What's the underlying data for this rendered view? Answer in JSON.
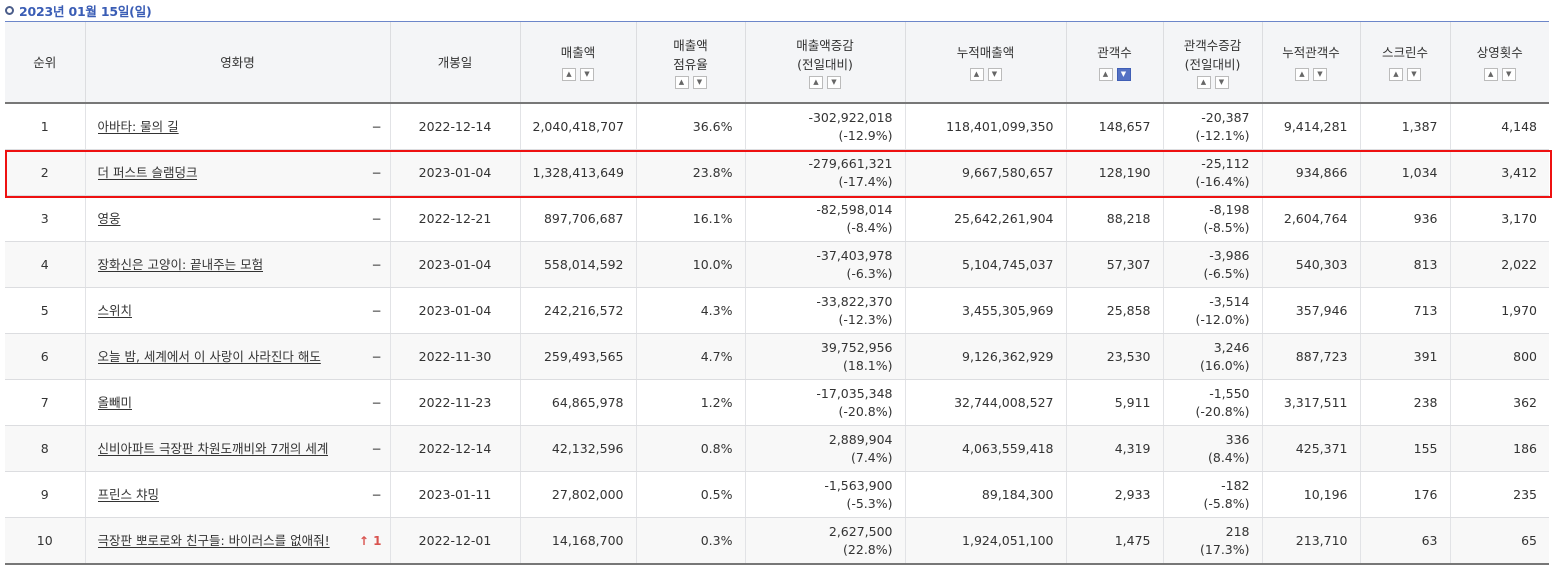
{
  "caption": "2023년 01월 15일(일)",
  "headers": {
    "rank": "순위",
    "title": "영화명",
    "open_date": "개봉일",
    "sales": "매출액",
    "share_line1": "매출액",
    "share_line2": "점유율",
    "sales_change_line1": "매출액증감",
    "sales_change_line2": "(전일대비)",
    "cum_sales": "누적매출액",
    "audience": "관객수",
    "aud_change_line1": "관객수증감",
    "aud_change_line2": "(전일대비)",
    "cum_audience": "누적관객수",
    "screens": "스크린수",
    "shows": "상영횟수"
  },
  "sort_icons": {
    "asc": "triangle-up",
    "desc": "triangle-down",
    "active_column": "audience",
    "active_direction": "desc"
  },
  "highlight": {
    "row_rank": "2",
    "color": "#ee1111"
  },
  "accent_color": "#3a5db5",
  "rows": [
    {
      "rank": "1",
      "title": "아바타: 물의 길",
      "change": "−",
      "change_up": false,
      "open_date": "2022-12-14",
      "sales": "2,040,418,707",
      "share": "36.6%",
      "sales_change": "-302,922,018",
      "sales_change_pct": "(-12.9%)",
      "cum_sales": "118,401,099,350",
      "audience": "148,657",
      "aud_change": "-20,387",
      "aud_change_pct": "(-12.1%)",
      "cum_audience": "9,414,281",
      "screens": "1,387",
      "shows": "4,148"
    },
    {
      "rank": "2",
      "title": "더 퍼스트 슬램덩크",
      "change": "−",
      "change_up": false,
      "open_date": "2023-01-04",
      "sales": "1,328,413,649",
      "share": "23.8%",
      "sales_change": "-279,661,321",
      "sales_change_pct": "(-17.4%)",
      "cum_sales": "9,667,580,657",
      "audience": "128,190",
      "aud_change": "-25,112",
      "aud_change_pct": "(-16.4%)",
      "cum_audience": "934,866",
      "screens": "1,034",
      "shows": "3,412"
    },
    {
      "rank": "3",
      "title": "영웅",
      "change": "−",
      "change_up": false,
      "open_date": "2022-12-21",
      "sales": "897,706,687",
      "share": "16.1%",
      "sales_change": "-82,598,014",
      "sales_change_pct": "(-8.4%)",
      "cum_sales": "25,642,261,904",
      "audience": "88,218",
      "aud_change": "-8,198",
      "aud_change_pct": "(-8.5%)",
      "cum_audience": "2,604,764",
      "screens": "936",
      "shows": "3,170"
    },
    {
      "rank": "4",
      "title": "장화신은 고양이: 끝내주는 모험",
      "change": "−",
      "change_up": false,
      "open_date": "2023-01-04",
      "sales": "558,014,592",
      "share": "10.0%",
      "sales_change": "-37,403,978",
      "sales_change_pct": "(-6.3%)",
      "cum_sales": "5,104,745,037",
      "audience": "57,307",
      "aud_change": "-3,986",
      "aud_change_pct": "(-6.5%)",
      "cum_audience": "540,303",
      "screens": "813",
      "shows": "2,022"
    },
    {
      "rank": "5",
      "title": "스위치",
      "change": "−",
      "change_up": false,
      "open_date": "2023-01-04",
      "sales": "242,216,572",
      "share": "4.3%",
      "sales_change": "-33,822,370",
      "sales_change_pct": "(-12.3%)",
      "cum_sales": "3,455,305,969",
      "audience": "25,858",
      "aud_change": "-3,514",
      "aud_change_pct": "(-12.0%)",
      "cum_audience": "357,946",
      "screens": "713",
      "shows": "1,970"
    },
    {
      "rank": "6",
      "title": "오늘 밤, 세계에서 이 사랑이 사라진다 해도",
      "change": "−",
      "change_up": false,
      "open_date": "2022-11-30",
      "sales": "259,493,565",
      "share": "4.7%",
      "sales_change": "39,752,956",
      "sales_change_pct": "(18.1%)",
      "cum_sales": "9,126,362,929",
      "audience": "23,530",
      "aud_change": "3,246",
      "aud_change_pct": "(16.0%)",
      "cum_audience": "887,723",
      "screens": "391",
      "shows": "800"
    },
    {
      "rank": "7",
      "title": "올빼미",
      "change": "−",
      "change_up": false,
      "open_date": "2022-11-23",
      "sales": "64,865,978",
      "share": "1.2%",
      "sales_change": "-17,035,348",
      "sales_change_pct": "(-20.8%)",
      "cum_sales": "32,744,008,527",
      "audience": "5,911",
      "aud_change": "-1,550",
      "aud_change_pct": "(-20.8%)",
      "cum_audience": "3,317,511",
      "screens": "238",
      "shows": "362"
    },
    {
      "rank": "8",
      "title": "신비아파트 극장판 차원도깨비와 7개의 세계",
      "change": "−",
      "change_up": false,
      "open_date": "2022-12-14",
      "sales": "42,132,596",
      "share": "0.8%",
      "sales_change": "2,889,904",
      "sales_change_pct": "(7.4%)",
      "cum_sales": "4,063,559,418",
      "audience": "4,319",
      "aud_change": "336",
      "aud_change_pct": "(8.4%)",
      "cum_audience": "425,371",
      "screens": "155",
      "shows": "186"
    },
    {
      "rank": "9",
      "title": "프린스 챠밍",
      "change": "−",
      "change_up": false,
      "open_date": "2023-01-11",
      "sales": "27,802,000",
      "share": "0.5%",
      "sales_change": "-1,563,900",
      "sales_change_pct": "(-5.3%)",
      "cum_sales": "89,184,300",
      "audience": "2,933",
      "aud_change": "-182",
      "aud_change_pct": "(-5.8%)",
      "cum_audience": "10,196",
      "screens": "176",
      "shows": "235"
    },
    {
      "rank": "10",
      "title": "극장판 뽀로로와 친구들: 바이러스를 없애줘!",
      "change": "↑ 1",
      "change_up": true,
      "open_date": "2022-12-01",
      "sales": "14,168,700",
      "share": "0.3%",
      "sales_change": "2,627,500",
      "sales_change_pct": "(22.8%)",
      "cum_sales": "1,924,051,100",
      "audience": "1,475",
      "aud_change": "218",
      "aud_change_pct": "(17.3%)",
      "cum_audience": "213,710",
      "screens": "63",
      "shows": "65"
    }
  ]
}
